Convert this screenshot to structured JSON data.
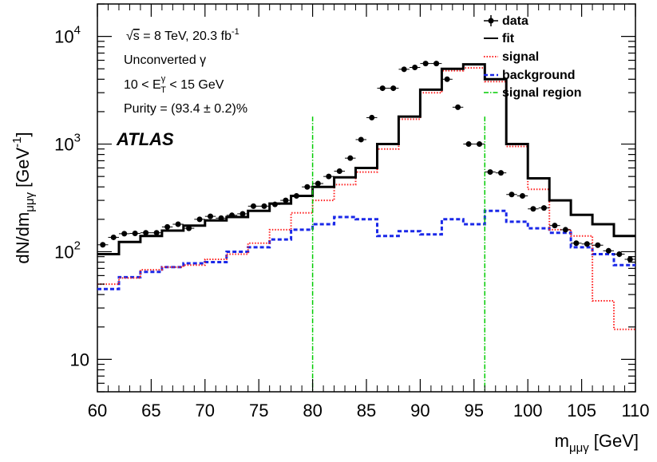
{
  "chart_data": {
    "type": "line",
    "xlabel": "m",
    "xlabel_sub": "μμγ",
    "xlabel_unit": "[GeV]",
    "ylabel": "dN/dm",
    "ylabel_sub": "μμγ",
    "ylabel_unit": "[GeV",
    "ylabel_unit_sup": "-1",
    "ylabel_unit_close": "]",
    "xlim": [
      60,
      110
    ],
    "ylim": [
      5,
      20000
    ],
    "yscale": "log",
    "grid": false,
    "legend_position": "top-right",
    "x_ticks": [
      {
        "value": 60,
        "label": "60"
      },
      {
        "value": 65,
        "label": "65"
      },
      {
        "value": 70,
        "label": "70"
      },
      {
        "value": 75,
        "label": "75"
      },
      {
        "value": 80,
        "label": "80"
      },
      {
        "value": 85,
        "label": "85"
      },
      {
        "value": 90,
        "label": "90"
      },
      {
        "value": 95,
        "label": "95"
      },
      {
        "value": 100,
        "label": "100"
      },
      {
        "value": 105,
        "label": "105"
      },
      {
        "value": 110,
        "label": "110"
      }
    ],
    "y_ticks": [
      {
        "value": 10,
        "base": "10",
        "exp": ""
      },
      {
        "value": 100,
        "base": "10",
        "exp": "2"
      },
      {
        "value": 1000,
        "base": "10",
        "exp": "3"
      },
      {
        "value": 10000,
        "base": "10",
        "exp": "4"
      }
    ],
    "bin_edges": [
      60,
      62,
      64,
      66,
      68,
      70,
      72,
      74,
      76,
      78,
      80,
      82,
      84,
      86,
      88,
      90,
      92,
      94,
      96,
      98,
      100,
      102,
      104,
      106,
      108,
      110
    ],
    "series": [
      {
        "name": "data",
        "style": "points",
        "color": "#000000",
        "x": [
          61,
          62,
          63,
          64,
          65,
          66,
          67,
          68,
          69,
          70,
          71,
          72,
          73,
          74,
          75,
          76,
          77,
          78,
          79,
          80,
          81,
          82,
          83,
          84,
          85,
          86,
          87,
          88,
          89,
          90,
          91,
          92,
          93,
          94,
          95,
          96,
          97,
          98,
          99,
          100,
          101,
          102,
          103,
          104,
          105,
          106,
          107,
          108,
          109,
          110
        ],
        "y": [
          116,
          136,
          147,
          148,
          150,
          150,
          170,
          180,
          165,
          200,
          213,
          205,
          218,
          225,
          265,
          265,
          275,
          300,
          330,
          400,
          430,
          500,
          560,
          740,
          1100,
          1760,
          3300,
          3300,
          4950,
          5150,
          5600,
          5600,
          4000,
          2200,
          1000,
          1000,
          550,
          540,
          340,
          330,
          250,
          255,
          175,
          160,
          120,
          118,
          115,
          102,
          95,
          85
        ]
      },
      {
        "name": "fit",
        "style": "step",
        "color": "#000000",
        "values": [
          95,
          123,
          140,
          157,
          175,
          195,
          210,
          240,
          280,
          330,
          400,
          490,
          600,
          1000,
          1800,
          3200,
          5000,
          5500,
          4000,
          1000,
          480,
          300,
          220,
          180,
          140
        ]
      },
      {
        "name": "signal",
        "style": "step-dotted",
        "color": "#ff2020",
        "values": [
          50,
          57,
          68,
          72,
          75,
          85,
          95,
          120,
          160,
          230,
          300,
          420,
          550,
          900,
          1700,
          3000,
          4800,
          5100,
          3800,
          950,
          380,
          160,
          140,
          35,
          19
        ]
      },
      {
        "name": "background",
        "style": "step-dashed",
        "color": "#1a28e8",
        "values": [
          45,
          58,
          65,
          72,
          78,
          80,
          100,
          110,
          130,
          160,
          180,
          210,
          200,
          140,
          155,
          145,
          200,
          180,
          240,
          190,
          165,
          150,
          110,
          95,
          75
        ]
      },
      {
        "name": "signal region",
        "style": "vertical-lines",
        "color": "#00cc00",
        "x": [
          80,
          96
        ]
      }
    ],
    "legend": [
      {
        "label": "data",
        "style": "points"
      },
      {
        "label": "fit",
        "style": "solid"
      },
      {
        "label": "signal",
        "style": "dotted"
      },
      {
        "label": "background",
        "style": "dashed"
      },
      {
        "label": "signal region",
        "style": "dashdot"
      }
    ],
    "colors": {
      "data": "#000000",
      "fit": "#000000",
      "signal": "#ff2020",
      "background": "#1a28e8",
      "signal_region": "#00cc00"
    },
    "annotations": {
      "energy_prefix": "√",
      "energy_s": "s",
      "energy_rest": " = 8 TeV, 20.3 fb",
      "energy_sup": "-1",
      "category": "Unconverted γ",
      "et_low": "10 < E",
      "et_sub": "T",
      "et_sup": "γ",
      "et_high": " < 15 GeV",
      "purity": "Purity = (93.4 ± 0.2)%",
      "experiment": "ATLAS"
    }
  }
}
